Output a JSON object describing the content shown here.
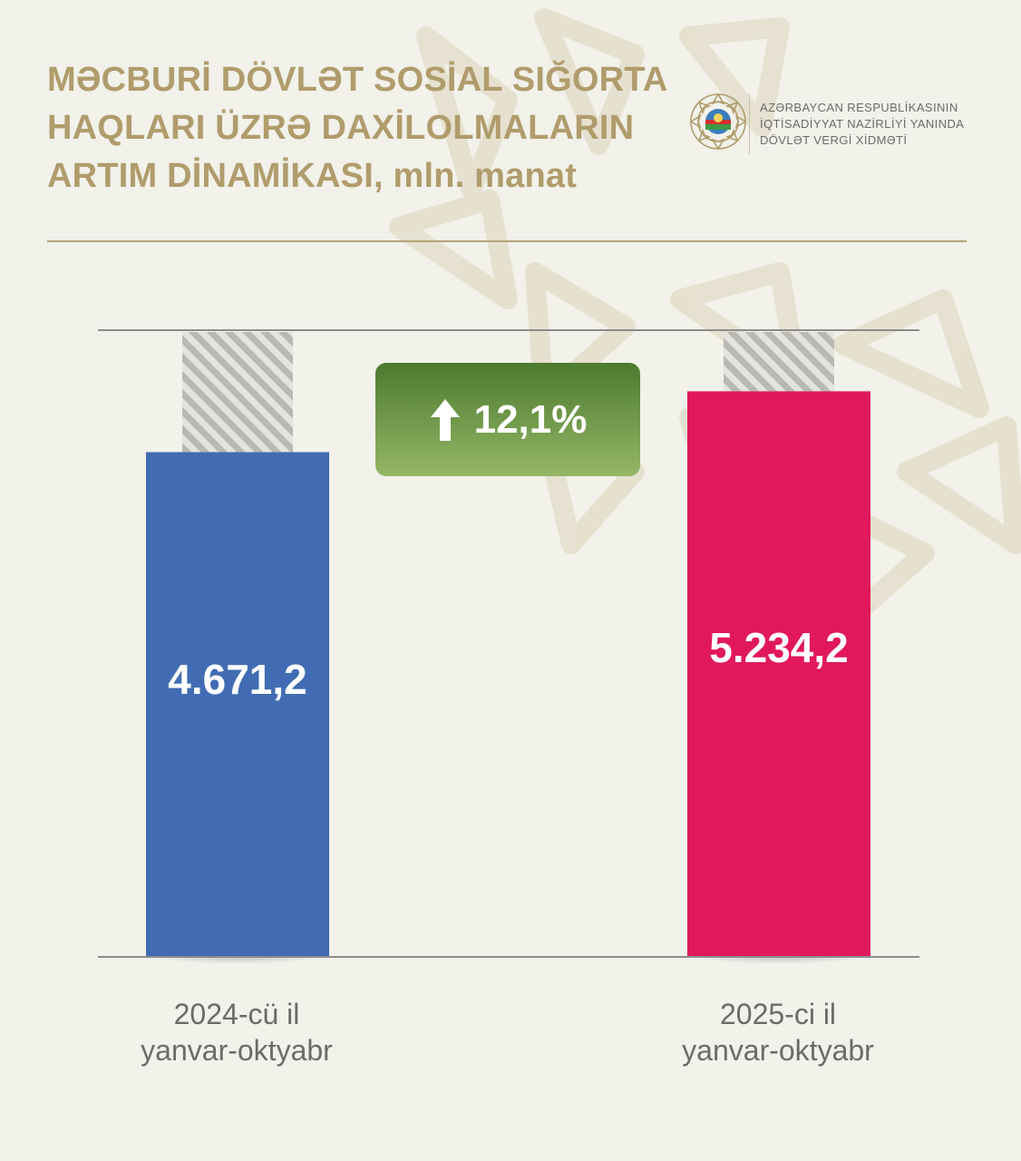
{
  "title": {
    "line1": "MƏCBURİ DÖVLƏT SOSİAL SIĞORTA",
    "line2": "HAQLARI ÜZRƏ DAXİLOLMALARIN",
    "line3_main": "ARTIM DİNAMİKASI,",
    "line3_unit": "mln. manat"
  },
  "logo": {
    "line1": "AZƏRBAYCAN RESPUBLİKASININ",
    "line2": "İQTİSADİYYAT NAZİRLİYİ YANINDA",
    "line3": "DÖVLƏT VERGİ XİDMƏTİ",
    "emblem_icon": "state-emblem-icon"
  },
  "colors": {
    "background": "#f2f1ea",
    "title": "#b09c6c",
    "bar_2024": "#416cb3",
    "bar_2025": "#e1185c",
    "badge_top": "#4d7a2f",
    "badge_bottom": "#94b766"
  },
  "growth": {
    "icon": "arrow-up-icon",
    "label": "12,1%"
  },
  "chart_data": {
    "type": "bar",
    "categories": [
      "2024-cü il yanvar-oktyabr",
      "2025-ci il yanvar-oktyabr"
    ],
    "category_lines": [
      [
        "2024-cü il",
        "yanvar-oktyabr"
      ],
      [
        "2025-ci il",
        "yanvar-oktyabr"
      ]
    ],
    "values": [
      4671.2,
      5234.2
    ],
    "value_labels": [
      "4.671,2",
      "5.234,2"
    ],
    "ylim": [
      0,
      5800
    ],
    "grid": false,
    "legend": "none"
  }
}
